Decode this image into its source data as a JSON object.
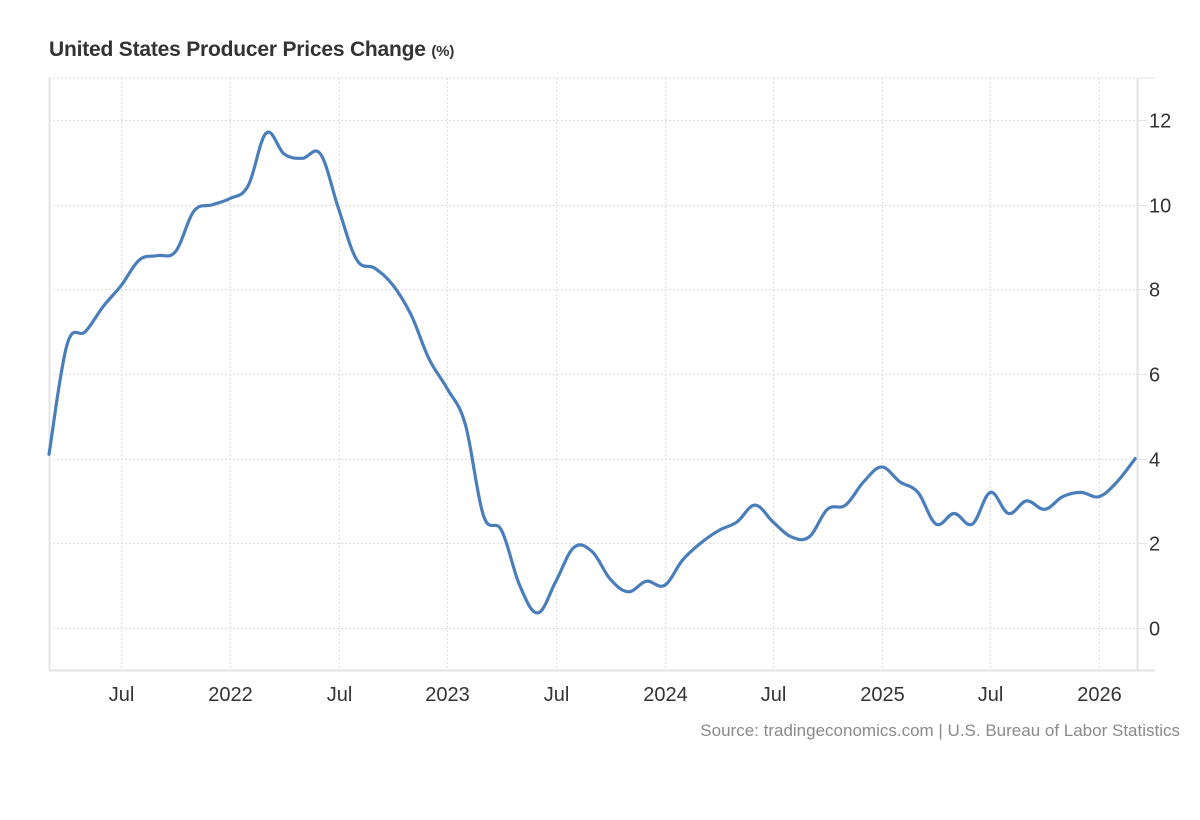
{
  "header": {
    "title": "United States Producer Prices Change",
    "unit": "(%)"
  },
  "footer": {
    "source": "Source: tradingeconomics.com | U.S. Bureau of Labor Statistics"
  },
  "colors": {
    "line": "#4a7ebb",
    "grid": "#dddddd",
    "axis": "#e3e3e3",
    "text": "#333333"
  },
  "chart_data": {
    "type": "line",
    "title": "United States Producer Prices Change (%)",
    "xlabel": "",
    "ylabel": "",
    "x_range": [
      "2021-03",
      "2026-03"
    ],
    "ylim": [
      -1,
      13
    ],
    "yticks": [
      0,
      2,
      4,
      6,
      8,
      10,
      12
    ],
    "ytick_position": "right",
    "xticks": [
      {
        "date": "2021-07",
        "label": "Jul"
      },
      {
        "date": "2022-01",
        "label": "2022"
      },
      {
        "date": "2022-07",
        "label": "Jul"
      },
      {
        "date": "2023-01",
        "label": "2023"
      },
      {
        "date": "2023-07",
        "label": "Jul"
      },
      {
        "date": "2024-01",
        "label": "2024"
      },
      {
        "date": "2024-07",
        "label": "Jul"
      },
      {
        "date": "2025-01",
        "label": "2025"
      },
      {
        "date": "2025-07",
        "label": "Jul"
      },
      {
        "date": "2026-01",
        "label": "2026"
      }
    ],
    "grid": true,
    "legend": "none",
    "series": [
      {
        "name": "Producer Prices Change",
        "x": [
          "2021-03",
          "2021-04",
          "2021-05",
          "2021-06",
          "2021-07",
          "2021-08",
          "2021-09",
          "2021-10",
          "2021-11",
          "2021-12",
          "2022-01",
          "2022-02",
          "2022-03",
          "2022-04",
          "2022-05",
          "2022-06",
          "2022-07",
          "2022-08",
          "2022-09",
          "2022-10",
          "2022-11",
          "2022-12",
          "2023-01",
          "2023-02",
          "2023-03",
          "2023-04",
          "2023-05",
          "2023-06",
          "2023-07",
          "2023-08",
          "2023-09",
          "2023-10",
          "2023-11",
          "2023-12",
          "2024-01",
          "2024-02",
          "2024-03",
          "2024-04",
          "2024-05",
          "2024-06",
          "2024-07",
          "2024-08",
          "2024-09",
          "2024-10",
          "2024-11",
          "2024-12",
          "2025-01",
          "2025-02",
          "2025-03",
          "2025-04",
          "2025-05",
          "2025-06",
          "2025-07",
          "2025-08",
          "2025-09",
          "2025-10",
          "2025-11",
          "2025-12",
          "2026-01",
          "2026-02",
          "2026-03"
        ],
        "values": [
          4.1,
          6.7,
          7.0,
          7.6,
          8.1,
          8.7,
          8.8,
          8.9,
          9.85,
          10.0,
          10.15,
          10.45,
          11.7,
          11.2,
          11.1,
          11.2,
          9.9,
          8.7,
          8.5,
          8.1,
          7.4,
          6.35,
          5.65,
          4.8,
          2.65,
          2.3,
          1.0,
          0.35,
          1.1,
          1.9,
          1.8,
          1.15,
          0.85,
          1.1,
          1.0,
          1.6,
          2.0,
          2.3,
          2.5,
          2.9,
          2.5,
          2.15,
          2.15,
          2.8,
          2.9,
          3.45,
          3.8,
          3.45,
          3.2,
          2.45,
          2.7,
          2.45,
          3.2,
          2.7,
          3.0,
          2.8,
          3.1,
          3.2,
          3.1,
          3.45,
          4.0
        ]
      }
    ]
  }
}
